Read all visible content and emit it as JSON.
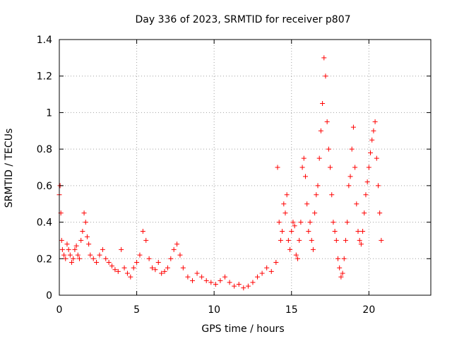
{
  "chart_data": {
    "type": "scatter",
    "title": "Day 336 of 2023, SRMTID for receiver p807",
    "xlabel": "GPS time / hours",
    "ylabel": "SRMTID / TECUs",
    "xlim": [
      0,
      24
    ],
    "ylim": [
      0,
      1.4
    ],
    "x_ticks": [
      0,
      5,
      10,
      15,
      20
    ],
    "x_tick_labels": [
      "0",
      "5",
      "10",
      "15",
      "20"
    ],
    "y_ticks": [
      0,
      0.2,
      0.4,
      0.6,
      0.8,
      1.0,
      1.2,
      1.4
    ],
    "y_tick_labels": [
      "0",
      "0.2",
      "0.4",
      "0.6",
      "0.8",
      "1",
      "1.2",
      "1.4"
    ],
    "grid": true,
    "marker": "plus",
    "color": "#ff0000",
    "series": [
      {
        "name": "SRMTID",
        "x": [
          0.0,
          0.05,
          0.1,
          0.15,
          0.2,
          0.3,
          0.4,
          0.5,
          0.6,
          0.7,
          0.8,
          0.9,
          1.0,
          1.1,
          1.2,
          1.3,
          1.4,
          1.5,
          1.6,
          1.7,
          1.8,
          1.9,
          2.0,
          2.2,
          2.4,
          2.6,
          2.8,
          3.0,
          3.2,
          3.4,
          3.6,
          3.8,
          4.0,
          4.2,
          4.4,
          4.6,
          4.8,
          5.0,
          5.2,
          5.4,
          5.6,
          5.8,
          6.0,
          6.2,
          6.4,
          6.6,
          6.8,
          7.0,
          7.2,
          7.4,
          7.6,
          7.8,
          8.0,
          8.3,
          8.6,
          8.9,
          9.2,
          9.5,
          9.8,
          10.1,
          10.4,
          10.7,
          11.0,
          11.3,
          11.6,
          11.9,
          12.2,
          12.5,
          12.8,
          13.1,
          13.4,
          13.7,
          14.0,
          14.1,
          14.2,
          14.3,
          14.4,
          14.5,
          14.6,
          14.7,
          14.8,
          14.9,
          15.0,
          15.1,
          15.2,
          15.3,
          15.4,
          15.5,
          15.6,
          15.7,
          15.8,
          15.9,
          16.0,
          16.1,
          16.2,
          16.3,
          16.4,
          16.5,
          16.6,
          16.7,
          16.8,
          16.9,
          17.0,
          17.1,
          17.2,
          17.3,
          17.4,
          17.5,
          17.6,
          17.7,
          17.8,
          17.9,
          18.0,
          18.1,
          18.2,
          18.3,
          18.4,
          18.5,
          18.6,
          18.7,
          18.8,
          18.9,
          19.0,
          19.1,
          19.2,
          19.3,
          19.4,
          19.5,
          19.6,
          19.7,
          19.8,
          19.9,
          20.0,
          20.1,
          20.2,
          20.3,
          20.4,
          20.5,
          20.6,
          20.7,
          20.8
        ],
        "y": [
          0.55,
          0.6,
          0.45,
          0.3,
          0.25,
          0.22,
          0.2,
          0.28,
          0.25,
          0.22,
          0.18,
          0.2,
          0.25,
          0.27,
          0.22,
          0.2,
          0.3,
          0.35,
          0.45,
          0.4,
          0.32,
          0.28,
          0.22,
          0.2,
          0.18,
          0.22,
          0.25,
          0.2,
          0.18,
          0.16,
          0.14,
          0.13,
          0.25,
          0.15,
          0.12,
          0.1,
          0.15,
          0.18,
          0.22,
          0.35,
          0.3,
          0.2,
          0.15,
          0.14,
          0.18,
          0.12,
          0.13,
          0.15,
          0.2,
          0.25,
          0.28,
          0.22,
          0.15,
          0.1,
          0.08,
          0.12,
          0.1,
          0.08,
          0.07,
          0.06,
          0.08,
          0.1,
          0.07,
          0.05,
          0.06,
          0.04,
          0.05,
          0.07,
          0.1,
          0.12,
          0.15,
          0.13,
          0.18,
          0.7,
          0.4,
          0.3,
          0.35,
          0.5,
          0.45,
          0.55,
          0.3,
          0.25,
          0.35,
          0.4,
          0.38,
          0.22,
          0.2,
          0.3,
          0.4,
          0.7,
          0.75,
          0.65,
          0.5,
          0.35,
          0.4,
          0.3,
          0.25,
          0.45,
          0.55,
          0.6,
          0.75,
          0.9,
          1.05,
          1.3,
          1.2,
          0.95,
          0.8,
          0.7,
          0.55,
          0.4,
          0.35,
          0.3,
          0.2,
          0.15,
          0.1,
          0.12,
          0.2,
          0.3,
          0.4,
          0.6,
          0.65,
          0.8,
          0.92,
          0.7,
          0.5,
          0.35,
          0.3,
          0.28,
          0.35,
          0.45,
          0.55,
          0.62,
          0.7,
          0.78,
          0.85,
          0.9,
          0.95,
          0.75,
          0.6,
          0.45,
          0.3
        ]
      }
    ]
  }
}
